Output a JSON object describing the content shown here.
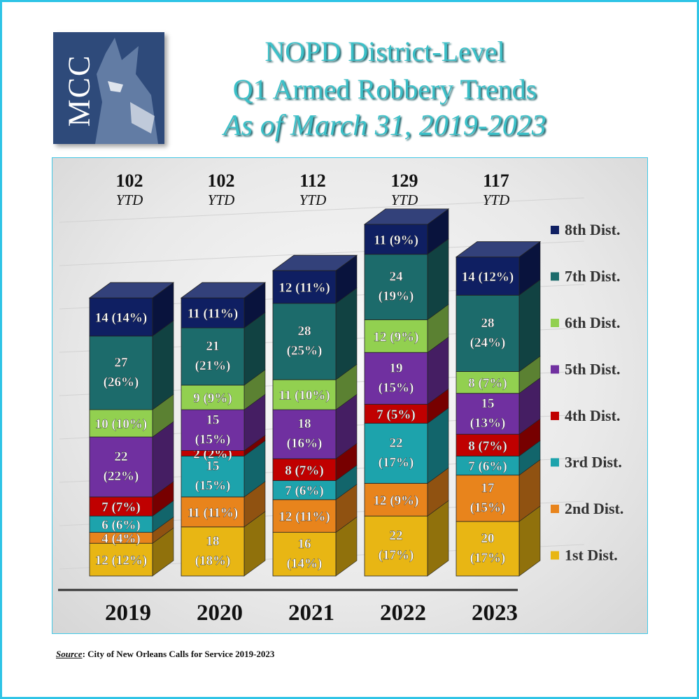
{
  "title": {
    "line1": "NOPD District-Level",
    "line2": "Q1 Armed Robbery Trends",
    "line3": "As of March 31, 2019-2023"
  },
  "logo": {
    "text": "MCC",
    "icon": "wolf-head-icon"
  },
  "source": {
    "label": "Source",
    "text": ":  City of New Orleans Calls for Service 2019-2023"
  },
  "colors": {
    "1st Dist.": "#e8b614",
    "2nd Dist.": "#e8841c",
    "3rd Dist.": "#1da3ac",
    "4th Dist.": "#c00000",
    "5th Dist.": "#7030a0",
    "6th Dist.": "#92d050",
    "7th Dist.": "#1c6b6b",
    "8th Dist.": "#0f1f62"
  },
  "chart_data": {
    "type": "bar",
    "stacked": true,
    "categories": [
      "2019",
      "2020",
      "2021",
      "2022",
      "2023"
    ],
    "totals": [
      "102",
      "102",
      "112",
      "129",
      "117"
    ],
    "total_suffix": "YTD",
    "legend_position": "right",
    "series": [
      {
        "name": "1st Dist.",
        "values": [
          12,
          18,
          16,
          22,
          20
        ],
        "labels": [
          "12 (12%)",
          "18 (18%)",
          "16 (14%)",
          "22 (17%)",
          "20 (17%)"
        ]
      },
      {
        "name": "2nd Dist.",
        "values": [
          4,
          11,
          12,
          12,
          17
        ],
        "labels": [
          "4 (4%)",
          "11 (11%)",
          "12 (11%)",
          "12 (9%)",
          "17 (15%)"
        ]
      },
      {
        "name": "3rd Dist.",
        "values": [
          6,
          15,
          7,
          22,
          7
        ],
        "labels": [
          "6 (6%)",
          "15 (15%)",
          "7 (6%)",
          "22 (17%)",
          "7 (6%)"
        ]
      },
      {
        "name": "4th Dist.",
        "values": [
          7,
          2,
          8,
          7,
          8
        ],
        "labels": [
          "7 (7%)",
          "2 (2%)",
          "8 (7%)",
          "7 (5%)",
          "8 (7%)"
        ]
      },
      {
        "name": "5th Dist.",
        "values": [
          22,
          15,
          18,
          19,
          15
        ],
        "labels": [
          "22 (22%)",
          "15 (15%)",
          "18 (16%)",
          "19 (15%)",
          "15 (13%)"
        ]
      },
      {
        "name": "6th Dist.",
        "values": [
          10,
          9,
          11,
          12,
          8
        ],
        "labels": [
          "10 (10%)",
          "9 (9%)",
          "11 (10%)",
          "12 (9%)",
          "8 (7%)"
        ]
      },
      {
        "name": "7th Dist.",
        "values": [
          27,
          21,
          28,
          24,
          28
        ],
        "labels": [
          "27 (26%)",
          "21 (21%)",
          "28 (25%)",
          "24 (19%)",
          "28 (24%)"
        ]
      },
      {
        "name": "8th Dist.",
        "values": [
          14,
          11,
          12,
          11,
          14
        ],
        "labels": [
          "14 (14%)",
          "11 (11%)",
          "12 (11%)",
          "11 (9%)",
          "14 (12%)"
        ]
      }
    ]
  }
}
